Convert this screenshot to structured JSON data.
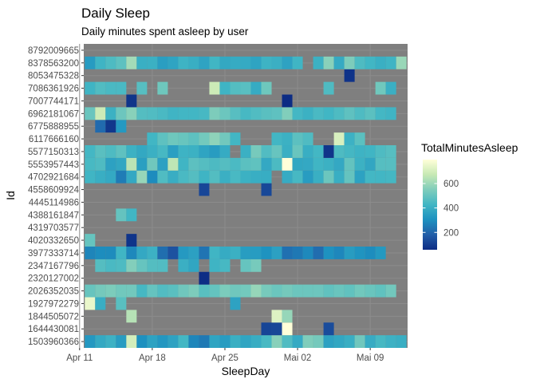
{
  "chart_data": {
    "type": "heatmap",
    "title": "Daily Sleep",
    "subtitle": "Daily minutes spent asleep by user",
    "xlabel": "SleepDay",
    "ylabel": "Id",
    "x_start": "2016-04-12",
    "x_end": "2016-05-12",
    "x_ticks": [
      {
        "date": "2016-04-11",
        "label": "Apr 11"
      },
      {
        "date": "2016-04-18",
        "label": "Apr 18"
      },
      {
        "date": "2016-04-25",
        "label": "Apr 25"
      },
      {
        "date": "2016-05-02",
        "label": "Mai 02"
      },
      {
        "date": "2016-05-09",
        "label": "Mai 09"
      }
    ],
    "panel_background": "#7f7f7f",
    "grid": true,
    "legend": {
      "title": "TotalMinutesAsleep",
      "position": "right",
      "min": 58,
      "max": 796,
      "breaks": [
        200,
        400,
        600
      ],
      "colors": [
        "#0c2c84",
        "#225ea8",
        "#1d91c0",
        "#41b6c4",
        "#7fcdbb",
        "#c7e9b4",
        "#ffffd9"
      ]
    },
    "ids": [
      "1503960366",
      "1644430081",
      "1844505072",
      "1927972279",
      "2026352035",
      "2320127002",
      "2347167796",
      "3977333714",
      "4020332650",
      "4319703577",
      "4388161847",
      "4445114986",
      "4558609924",
      "4702921684",
      "5553957443",
      "5577150313",
      "6117666160",
      "6775888955",
      "6962181067",
      "7007744171",
      "7086361926",
      "8053475328",
      "8378563200",
      "8792009665"
    ],
    "rows": {
      "1503960366": [
        327,
        384,
        412,
        340,
        700,
        304,
        360,
        325,
        361,
        430,
        277,
        245,
        366,
        341,
        404,
        369,
        396,
        441,
        565,
        458,
        388,
        550,
        531,
        357,
        377,
        400,
        520,
        392,
        437,
        412,
        400
      ],
      "1644430081": [
        null,
        null,
        null,
        null,
        null,
        null,
        null,
        null,
        null,
        null,
        null,
        null,
        null,
        null,
        null,
        null,
        null,
        119,
        124,
        796,
        null,
        null,
        null,
        137,
        null,
        null,
        null,
        null,
        null,
        null,
        null
      ],
      "1844505072": [
        null,
        null,
        null,
        null,
        644,
        null,
        null,
        null,
        null,
        null,
        null,
        null,
        null,
        null,
        null,
        null,
        null,
        null,
        722,
        590,
        null,
        null,
        null,
        null,
        null,
        null,
        null,
        null,
        null,
        null,
        null
      ],
      "1927972279": [
        750,
        398,
        null,
        475,
        null,
        null,
        null,
        null,
        null,
        null,
        null,
        null,
        null,
        null,
        361,
        null,
        null,
        null,
        null,
        null,
        null,
        null,
        null,
        null,
        null,
        null,
        null,
        null,
        null,
        null,
        null
      ],
      "2026352035": [
        503,
        531,
        545,
        523,
        524,
        437,
        498,
        461,
        477,
        520,
        547,
        475,
        496,
        543,
        520,
        527,
        589,
        535,
        511,
        531,
        513,
        512,
        515,
        490,
        507,
        490,
        523,
        507,
        489,
        525,
        null
      ],
      "2320127002": [
        null,
        null,
        null,
        null,
        null,
        null,
        null,
        null,
        null,
        null,
        null,
        61,
        null,
        null,
        null,
        null,
        null,
        null,
        null,
        null,
        null,
        null,
        null,
        null,
        null,
        null,
        null,
        null,
        null,
        null,
        null
      ],
      "2347167796": [
        null,
        467,
        445,
        452,
        556,
        500,
        465,
        460,
        null,
        405,
        374,
        null,
        420,
        439,
        null,
        500,
        534,
        null,
        null,
        null,
        null,
        null,
        null,
        null,
        null,
        null,
        null,
        null,
        null,
        null,
        null
      ],
      "3977333714": [
        274,
        295,
        291,
        424,
        283,
        381,
        412,
        219,
        152,
        332,
        355,
        235,
        423,
        391,
        406,
        343,
        339,
        309,
        354,
        225,
        244,
        284,
        216,
        306,
        281,
        340,
        313,
        294,
        329,
        null,
        null
      ],
      "4020332650": [
        501,
        null,
        null,
        null,
        77,
        null,
        null,
        null,
        null,
        null,
        null,
        null,
        null,
        null,
        null,
        null,
        null,
        null,
        null,
        null,
        null,
        null,
        null,
        null,
        null,
        null,
        null,
        null,
        null,
        null,
        null
      ],
      "4319703577": [
        null,
        null,
        null,
        null,
        null,
        null,
        null,
        null,
        null,
        null,
        null,
        null,
        null,
        null,
        null,
        null,
        null,
        null,
        null,
        null,
        null,
        null,
        null,
        null,
        null,
        null,
        null,
        null,
        null,
        null,
        null
      ],
      "4388161847": [
        null,
        null,
        null,
        499,
        426,
        null,
        null,
        null,
        null,
        null,
        null,
        null,
        null,
        null,
        null,
        null,
        null,
        null,
        null,
        null,
        null,
        null,
        null,
        null,
        null,
        null,
        null,
        null,
        null,
        null,
        null
      ],
      "4445114986": [
        null,
        null,
        null,
        null,
        null,
        null,
        null,
        null,
        null,
        null,
        null,
        null,
        null,
        null,
        null,
        null,
        null,
        null,
        null,
        null,
        null,
        null,
        null,
        null,
        null,
        null,
        null,
        null,
        null,
        null,
        null
      ],
      "4558609924": [
        null,
        null,
        null,
        null,
        null,
        null,
        null,
        null,
        null,
        null,
        null,
        123,
        null,
        null,
        null,
        null,
        null,
        126,
        null,
        null,
        null,
        null,
        null,
        null,
        null,
        null,
        null,
        null,
        null,
        null,
        null
      ],
      "4702921684": [
        425,
        400,
        384,
        253,
        382,
        591,
        293,
        457,
        398,
        444,
        466,
        421,
        463,
        405,
        443,
        411,
        400,
        397,
        null,
        392,
        438,
        340,
        404,
        513,
        401,
        499,
        359,
        430,
        428,
        435,
        null
      ],
      "5553957443": [
        441,
        455,
        357,
        377,
        651,
        350,
        520,
        357,
        658,
        423,
        483,
        467,
        451,
        466,
        447,
        478,
        489,
        381,
        448,
        796,
        377,
        381,
        424,
        410,
        381,
        495,
        410,
        375,
        469,
        470,
        null
      ],
      "5577150313": [
        432,
        477,
        452,
        486,
        409,
        379,
        406,
        439,
        351,
        417,
        409,
        366,
        342,
        391,
        null,
        406,
        535,
        460,
        502,
        404,
        507,
        400,
        431,
        80,
        453,
        434,
        418,
        425,
        455,
        470,
        null
      ],
      "6117666160": [
        null,
        null,
        null,
        null,
        null,
        null,
        427,
        484,
        517,
        505,
        484,
        527,
        575,
        525,
        429,
        null,
        null,
        null,
        429,
        411,
        480,
        456,
        null,
        null,
        710,
        412,
        479,
        null,
        null,
        null,
        null
      ],
      "6775888955": [
        null,
        210,
        84,
        330,
        null,
        null,
        null,
        null,
        null,
        null,
        null,
        null,
        null,
        null,
        null,
        null,
        null,
        null,
        null,
        null,
        null,
        null,
        null,
        null,
        null,
        null,
        null,
        null,
        null,
        null,
        null
      ],
      "6962181067": [
        508,
        684,
        411,
        514,
        566,
        465,
        458,
        445,
        422,
        428,
        429,
        439,
        547,
        513,
        472,
        439,
        459,
        476,
        486,
        554,
        433,
        410,
        445,
        426,
        452,
        486,
        454,
        479,
        433,
        422,
        null
      ],
      "7007744171": [
        null,
        null,
        null,
        null,
        79,
        null,
        null,
        null,
        null,
        null,
        null,
        null,
        null,
        null,
        null,
        null,
        null,
        null,
        null,
        58,
        null,
        null,
        null,
        null,
        null,
        null,
        null,
        null,
        null,
        null,
        null
      ],
      "7086361926": [
        421,
        459,
        445,
        444,
        null,
        470,
        null,
        516,
        null,
        null,
        null,
        null,
        684,
        421,
        465,
        474,
        389,
        516,
        null,
        null,
        null,
        null,
        null,
        454,
        null,
        null,
        null,
        null,
        521,
        405,
        null
      ],
      "8053475328": [
        null,
        null,
        null,
        null,
        null,
        null,
        null,
        null,
        null,
        null,
        null,
        null,
        null,
        null,
        null,
        null,
        null,
        null,
        null,
        null,
        null,
        null,
        null,
        null,
        null,
        74,
        null,
        null,
        null,
        null,
        null
      ],
      "8378563200": [
        338,
        421,
        452,
        484,
        611,
        404,
        407,
        348,
        367,
        416,
        400,
        364,
        426,
        380,
        391,
        386,
        367,
        418,
        405,
        361,
        425,
        null,
        409,
        567,
        388,
        547,
        452,
        426,
        404,
        420,
        594
      ],
      "8792009665": [
        null,
        null,
        null,
        null,
        null,
        null,
        null,
        null,
        null,
        null,
        null,
        null,
        null,
        null,
        null,
        null,
        null,
        null,
        null,
        null,
        null,
        null,
        null,
        null,
        null,
        null,
        null,
        null,
        null,
        null,
        null
      ]
    }
  }
}
